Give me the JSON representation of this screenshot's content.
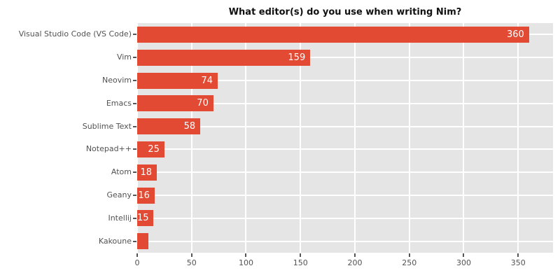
{
  "colors": {
    "bar": "#E24A33",
    "plot_bg": "#E5E5E5",
    "grid": "#FFFFFF",
    "tick_text": "#525252",
    "tick_mark": "#555555",
    "title_text": "#111111",
    "value_text": "#FFFFFF",
    "figure_bg": "#FFFFFF"
  },
  "chart_data": {
    "type": "bar",
    "orientation": "horizontal",
    "title": "What editor(s) do you use when writing Nim?",
    "xlabel": "",
    "ylabel": "",
    "categories": [
      "Visual Studio Code (VS Code)",
      "Vim",
      "Neovim",
      "Emacs",
      "Sublime Text",
      "Notepad++",
      "Atom",
      "Geany",
      "Intellij",
      "Kakoune"
    ],
    "values": [
      360,
      159,
      74,
      70,
      58,
      25,
      18,
      16,
      15,
      10
    ],
    "value_labels": [
      "360",
      "159",
      "74",
      "70",
      "58",
      "25",
      "18",
      "16",
      "15",
      ""
    ],
    "xticks": [
      0,
      50,
      100,
      150,
      200,
      250,
      300,
      350
    ],
    "xlim": [
      0,
      382
    ],
    "grid": true,
    "legend": false
  }
}
